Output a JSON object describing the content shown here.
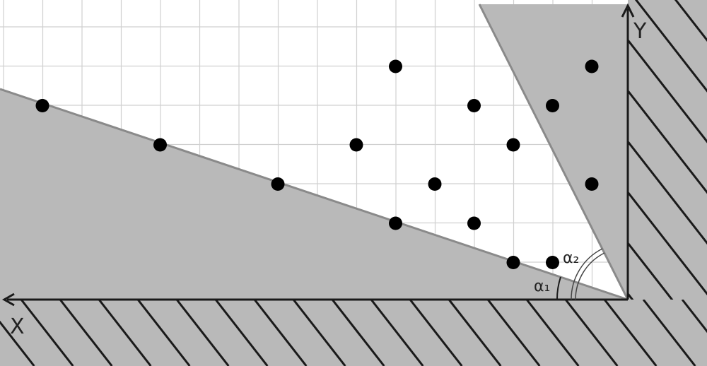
{
  "axes": {
    "x_label": "X",
    "y_label": "Y"
  },
  "angles": {
    "alpha1": "α₁",
    "alpha2": "α₂"
  },
  "colors": {
    "background": "#ffffff",
    "grid": "#d0d0d0",
    "shaded_region": "#b9b9b9",
    "region_edge": "#8a8a8a",
    "hatch": "#1a1a1a",
    "point": "#000000",
    "axis": "#1a1a1a"
  },
  "points": [
    {
      "col": 1,
      "row": 2.7
    },
    {
      "col": 4,
      "row": 3.7
    },
    {
      "col": 7,
      "row": 4.7
    },
    {
      "col": 10,
      "row": 5.7
    },
    {
      "col": 13,
      "row": 6.7
    },
    {
      "col": 10,
      "row": 1.7
    },
    {
      "col": 12,
      "row": 2.7
    },
    {
      "col": 9,
      "row": 3.7
    },
    {
      "col": 13,
      "row": 3.7
    },
    {
      "col": 11,
      "row": 4.7
    },
    {
      "col": 12,
      "row": 5.7
    },
    {
      "col": 14,
      "row": 2.7
    },
    {
      "col": 15,
      "row": 1.7
    },
    {
      "col": 15,
      "row": 4.7
    },
    {
      "col": 14,
      "row": 6.7
    }
  ]
}
